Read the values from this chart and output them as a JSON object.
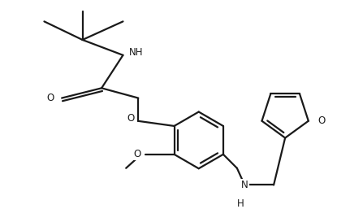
{
  "bg_color": "#ffffff",
  "line_color": "#1a1a1a",
  "line_width": 1.6,
  "font_size": 8.5,
  "figsize": [
    4.15,
    2.57
  ],
  "dpi": 100,
  "xlim": [
    0,
    415
  ],
  "ylim": [
    0,
    257
  ]
}
